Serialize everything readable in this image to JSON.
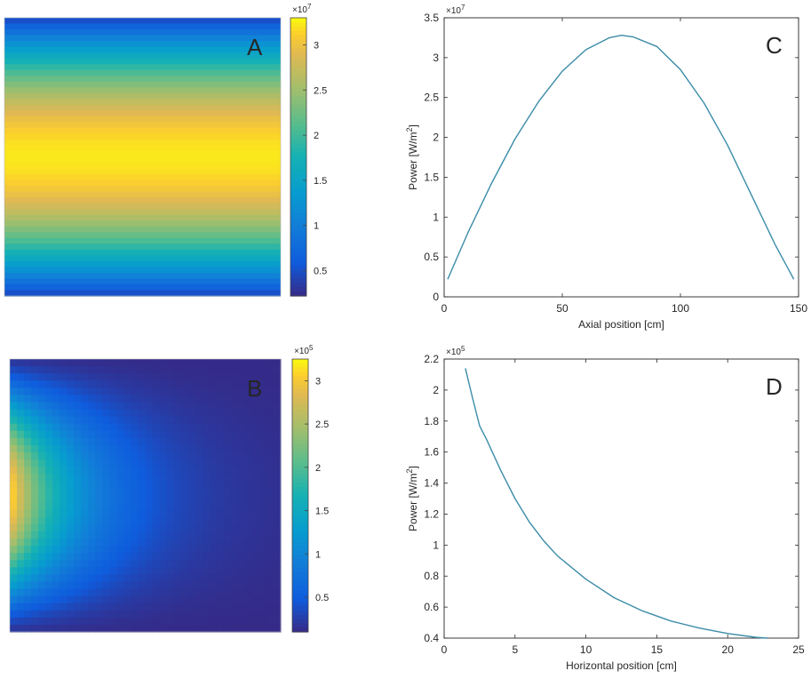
{
  "chart_data": [
    {
      "id": "A",
      "panel_label": "A",
      "type": "heatmap",
      "pattern": "rows vary along vertical axis: low at top and bottom edges, maximum in the middle band; uniform across columns",
      "colormap": "parula",
      "value_range": [
        2200000,
        33000000
      ],
      "colorbar": {
        "exponent_label": "×10",
        "exponent": "7",
        "ticks": [
          0.5,
          1,
          1.5,
          2,
          2.5,
          3
        ],
        "tick_labels": [
          "0.5",
          "1",
          "1.5",
          "2",
          "2.5",
          "3"
        ],
        "lim": [
          0.22,
          3.3
        ]
      }
    },
    {
      "id": "B",
      "panel_label": "B",
      "type": "heatmap",
      "pattern": "maximum at the left edge, centre height; decays toward the right and toward top and bottom",
      "colormap": "parula",
      "value_range": [
        10000,
        320000
      ],
      "colorbar": {
        "exponent_label": "×10",
        "exponent": "5",
        "ticks": [
          0.5,
          1,
          1.5,
          2,
          2.5,
          3
        ],
        "tick_labels": [
          "0.5",
          "1",
          "1.5",
          "2",
          "2.5",
          "3"
        ],
        "lim": [
          0.1,
          3.25
        ]
      }
    },
    {
      "id": "C",
      "panel_label": "C",
      "type": "line",
      "xlabel": "Axial position [cm]",
      "ylabel_main": "Power [W/m",
      "ylabel_sup": "2",
      "ylabel_end": "]",
      "y_exponent_label": "×10",
      "y_exponent": "7",
      "xlim": [
        0,
        150
      ],
      "ylim": [
        0,
        3.5
      ],
      "xticks": [
        0,
        50,
        100,
        150
      ],
      "xtick_labels": [
        "0",
        "50",
        "100",
        "150"
      ],
      "yticks": [
        0,
        0.5,
        1,
        1.5,
        2,
        2.5,
        3,
        3.5
      ],
      "ytick_labels": [
        "0",
        "0.5",
        "1",
        "1.5",
        "2",
        "2.5",
        "3",
        "3.5"
      ],
      "series": [
        {
          "x": [
            1.5,
            10,
            20,
            30,
            40,
            50,
            60,
            70,
            75,
            80,
            90,
            100,
            110,
            120,
            130,
            140,
            148
          ],
          "y": [
            0.22,
            0.8,
            1.42,
            1.98,
            2.45,
            2.83,
            3.1,
            3.25,
            3.28,
            3.26,
            3.14,
            2.85,
            2.43,
            1.9,
            1.28,
            0.66,
            0.22
          ]
        }
      ],
      "line_color": "#3b8ca8"
    },
    {
      "id": "D",
      "panel_label": "D",
      "type": "line",
      "xlabel": "Horizontal position [cm]",
      "ylabel_main": "Power [W/m",
      "ylabel_sup": "2",
      "ylabel_end": "]",
      "y_exponent_label": "×10",
      "y_exponent": "5",
      "xlim": [
        0,
        25
      ],
      "ylim": [
        0.4,
        2.2
      ],
      "xticks": [
        0,
        5,
        10,
        15,
        20,
        25
      ],
      "xtick_labels": [
        "0",
        "5",
        "10",
        "15",
        "20",
        "25"
      ],
      "yticks": [
        0.4,
        0.6,
        0.8,
        1,
        1.2,
        1.4,
        1.6,
        1.8,
        2,
        2.2
      ],
      "ytick_labels": [
        "0.4",
        "0.6",
        "0.8",
        "1",
        "1.2",
        "1.4",
        "1.6",
        "1.8",
        "2",
        "2.2"
      ],
      "series": [
        {
          "x": [
            1.5,
            2,
            2.5,
            3,
            4,
            5,
            6,
            7,
            8,
            10,
            12,
            14,
            16,
            18,
            20,
            22,
            22.8
          ],
          "y": [
            2.14,
            1.95,
            1.77,
            1.68,
            1.48,
            1.3,
            1.15,
            1.03,
            0.93,
            0.78,
            0.66,
            0.575,
            0.51,
            0.465,
            0.43,
            0.405,
            0.4
          ]
        }
      ],
      "line_color": "#3b8ca8"
    }
  ]
}
